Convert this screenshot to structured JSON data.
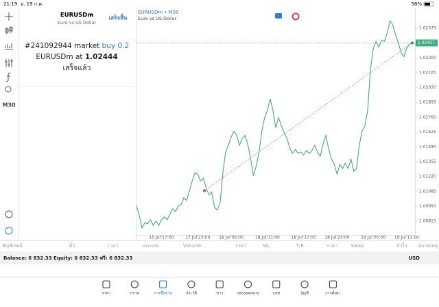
{
  "status_bar": {
    "time": "21:19",
    "date": "อ. 19 ก.ค.",
    "battery": "58%"
  },
  "toolbar": {
    "timeframe": "M30"
  },
  "symbol_panel": {
    "symbol": "EURUSDm",
    "description": "Euro vs US Dollar",
    "done_button": "เสร็จสิ้น",
    "message": {
      "order": "#241092944 market",
      "action": "buy 0.2",
      "fill": "EURUSDm at",
      "price": "1.02444",
      "status": "เสร็จแล้ว"
    }
  },
  "chart": {
    "type": "line",
    "title": "EURUSDm • M30",
    "subtitle": "Euro vs US Dollar",
    "color": "#3fae7e",
    "values": [
      1.00953,
      1.00865,
      1.00752,
      1.00802,
      1.0079,
      1.00828,
      1.00777,
      1.00815,
      1.00777,
      1.00828,
      1.00853,
      1.00828,
      1.00878,
      1.00928,
      1.00903,
      1.00953,
      1.00966,
      1.01029,
      1.01004,
      1.01092,
      1.0118,
      1.01255,
      1.01243,
      1.0118,
      1.01205,
      1.01117,
      1.01054,
      1.01079,
      1.00941,
      1.00916,
      1.00979,
      1.01255,
      1.01444,
      1.01507,
      1.01583,
      1.01633,
      1.01595,
      1.01507,
      1.0157,
      1.01595,
      1.01507,
      1.01381,
      1.0123,
      1.01318,
      1.01444,
      1.01633,
      1.01759,
      1.01822,
      1.01928,
      1.01822,
      1.01664,
      1.01759,
      1.01683,
      1.0162,
      1.0157,
      1.01482,
      1.01432,
      1.01469,
      1.01432,
      1.01444,
      1.01419,
      1.01457,
      1.01432,
      1.01457,
      1.01507,
      1.01444,
      1.01406,
      1.0152,
      1.01595,
      1.01469,
      1.01381,
      1.01331,
      1.01243,
      1.01331,
      1.01293,
      1.01343,
      1.01293,
      1.01381,
      1.01268,
      1.01293,
      1.01507,
      1.01633,
      1.01683,
      1.01822,
      1.02199,
      1.02388,
      1.02451,
      1.024,
      1.02463,
      1.02451,
      1.02526,
      1.02639,
      1.02601,
      1.02513,
      1.02438,
      1.0235,
      1.02312,
      1.02388,
      1.02425,
      1.02438
    ],
    "xlim": [
      0,
      99
    ],
    "xticks": [
      {
        "value": 9,
        "label": "15 Jul 17:00"
      },
      {
        "value": 22,
        "label": "17 Jul 23:00"
      },
      {
        "value": 34,
        "label": "18 Jul 05:00"
      },
      {
        "value": 47,
        "label": "18 Jul 11:00"
      },
      {
        "value": 60,
        "label": "18 Jul 17:00"
      },
      {
        "value": 72,
        "label": "18 Jul 23:00"
      },
      {
        "value": 85,
        "label": "19 Jul 05:00"
      },
      {
        "value": 97,
        "label": "19 Jul 11:00"
      }
    ],
    "ylim": [
      1.0069,
      1.0274
    ],
    "yticks": [
      {
        "value": 1.0257,
        "label": "1.02570"
      },
      {
        "value": 1.023,
        "label": "1.02300"
      },
      1.02165,
      {
        "value": 1.0203,
        "label": "1.02030"
      },
      1.01895,
      {
        "value": 1.0176,
        "label": "1.01760"
      },
      1.01625,
      {
        "value": 1.0149,
        "label": "1.01490"
      },
      1.01355,
      {
        "value": 1.0122,
        "label": "1.01220"
      },
      1.01085,
      {
        "value": 1.0095,
        "label": "1.00950"
      },
      1.00815
    ],
    "current_price": 1.02437,
    "open_marker": {
      "x": 24.4,
      "y": 1.01092
    }
  },
  "table": {
    "columns": [
      "สัญลักษณ์",
      "ตั๋ว",
      "เวลา",
      "ประเภท",
      "Volume",
      "ราคา",
      "S/L",
      "T/P",
      "ราคา",
      "Swap",
      "กำไร",
      "หมายเหตุ"
    ]
  },
  "balance": {
    "text": "Balance: 6 832.33 Equity: 6 832.33 ฟรี: 6 832.33",
    "currency": "USD"
  },
  "tabs": [
    "ราคา",
    "กราฟ",
    "การซื้อขาย",
    "ประวัติ",
    "ข่าว",
    "กล่องจดหมาย",
    "แชท",
    "บัญชี",
    "การตั้งค่า"
  ],
  "active_tab": 2
}
